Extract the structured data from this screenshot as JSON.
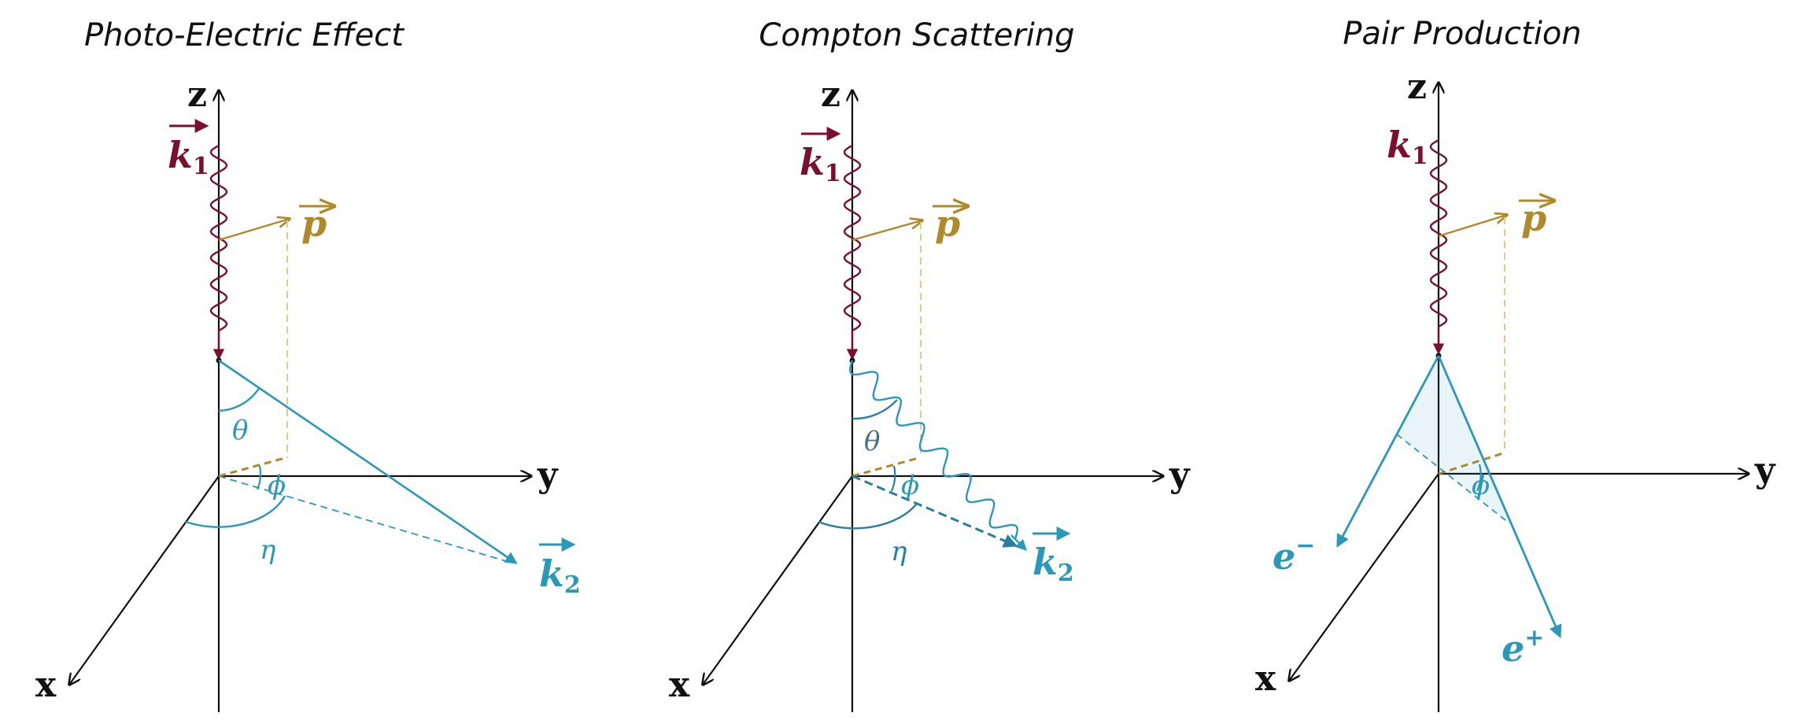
{
  "colors": {
    "photon_in": "#7d0f2e",
    "momentum": "#b08a2a",
    "momentum_light": "#e6c98a",
    "outgoing": "#2a98b8",
    "outgoing_dark": "#2a7f9e",
    "axis": "#111111"
  },
  "panels": [
    {
      "title": "Photo-Electric Effect",
      "axes": {
        "x": "x",
        "y": "y",
        "z": "z"
      },
      "photon_label": "k",
      "photon_sub": "1",
      "momentum_label": "p",
      "out_label": "k",
      "out_sub": "2",
      "angles": {
        "theta": "θ",
        "phi": "ϕ",
        "eta": "η"
      }
    },
    {
      "title": "Compton Scattering",
      "axes": {
        "x": "x",
        "y": "y",
        "z": "z"
      },
      "photon_label": "k",
      "photon_sub": "1",
      "momentum_label": "p",
      "out_label": "k",
      "out_sub": "2",
      "angles": {
        "theta": "θ",
        "phi": "ϕ",
        "eta": "η"
      }
    },
    {
      "title": "Pair Production",
      "axes": {
        "x": "x",
        "y": "y",
        "z": "z"
      },
      "photon_label": "k",
      "photon_sub": "1",
      "momentum_label": "p",
      "electron_label": "e",
      "electron_sup": "−",
      "positron_label": "e",
      "positron_sup": "+",
      "angles": {
        "phi": "ϕ"
      }
    }
  ]
}
